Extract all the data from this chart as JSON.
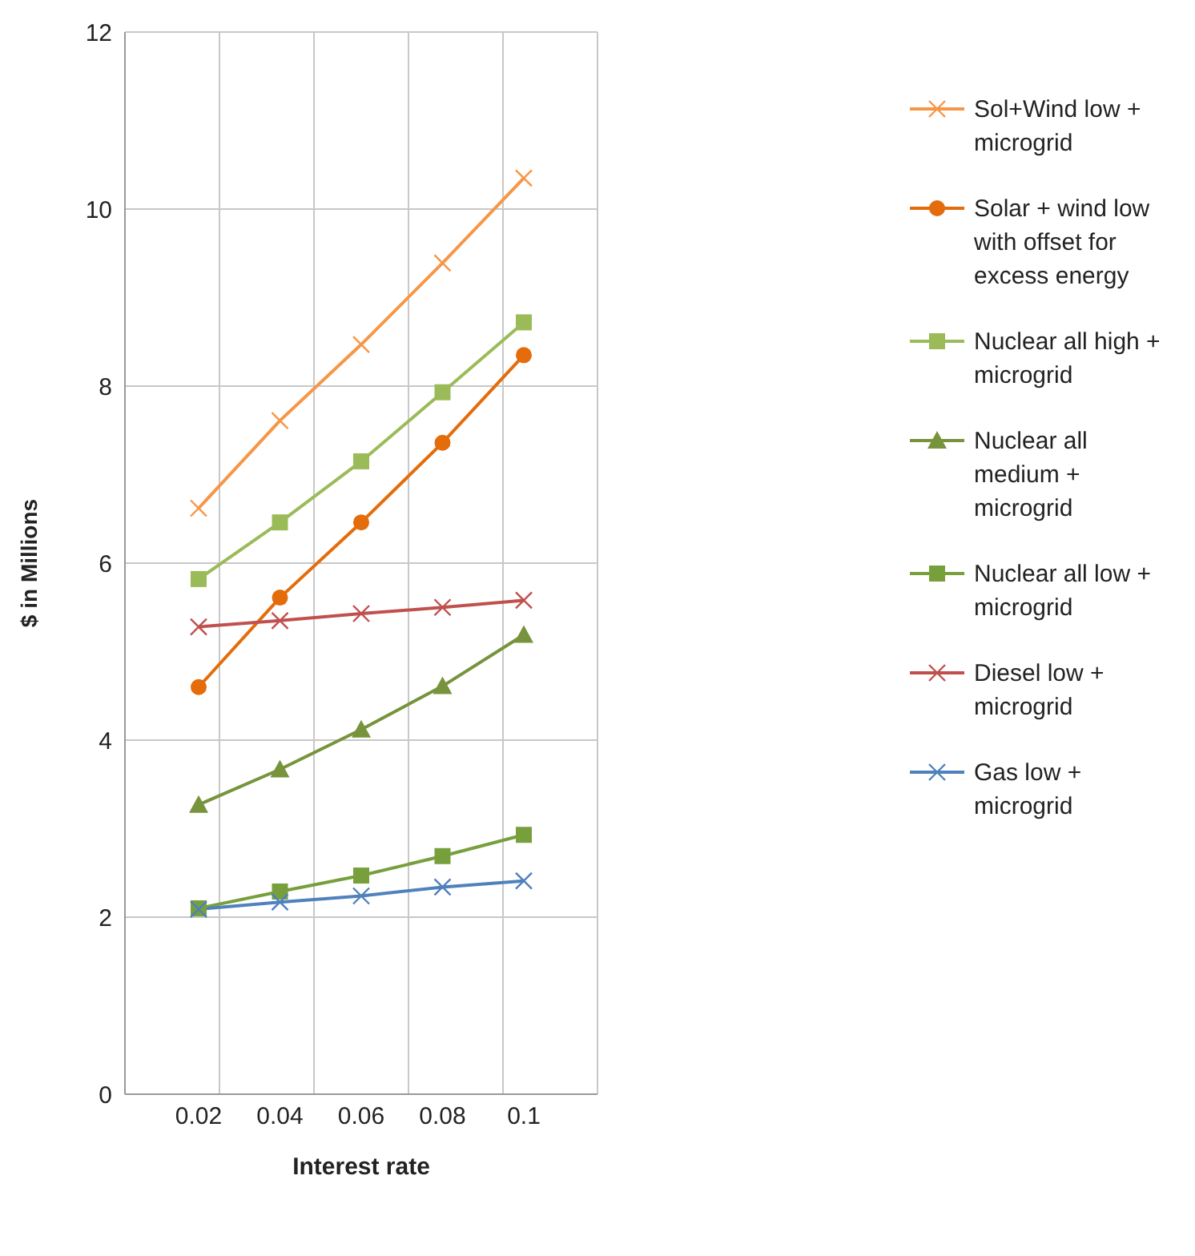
{
  "chart_data": {
    "type": "line",
    "xlabel": "Interest rate",
    "ylabel": "$ in Millions",
    "categories": [
      "0.02",
      "0.04",
      "0.06",
      "0.08",
      "0.1"
    ],
    "ylim": [
      0,
      12
    ],
    "yticks": [
      0,
      2,
      4,
      6,
      8,
      10,
      12
    ],
    "grid": true,
    "legend": "right",
    "series": [
      {
        "name": "Sol+Wind low + microgrid",
        "color": "#f79646",
        "marker": "cross",
        "values": [
          6.62,
          7.61,
          8.47,
          9.39,
          10.35
        ]
      },
      {
        "name": "Solar + wind low with offset for excess energy",
        "color": "#e46c0a",
        "marker": "circle",
        "values": [
          4.6,
          5.61,
          6.46,
          7.36,
          8.35
        ]
      },
      {
        "name": "Nuclear all high + microgrid",
        "color": "#9bbb59",
        "marker": "square",
        "values": [
          5.82,
          6.46,
          7.15,
          7.93,
          8.72
        ]
      },
      {
        "name": "Nuclear all medium + microgrid",
        "color": "#77933c",
        "marker": "triangle",
        "values": [
          3.27,
          3.67,
          4.12,
          4.61,
          5.19
        ]
      },
      {
        "name": "Nuclear all low + microgrid",
        "color": "#77a03c",
        "marker": "square",
        "values": [
          2.1,
          2.29,
          2.47,
          2.69,
          2.93
        ]
      },
      {
        "name": "Diesel low + microgrid",
        "color": "#c0504d",
        "marker": "cross",
        "values": [
          5.28,
          5.35,
          5.43,
          5.5,
          5.58
        ]
      },
      {
        "name": "Gas low + microgrid",
        "color": "#4f81bd",
        "marker": "cross",
        "values": [
          2.09,
          2.17,
          2.24,
          2.34,
          2.41
        ]
      }
    ]
  }
}
